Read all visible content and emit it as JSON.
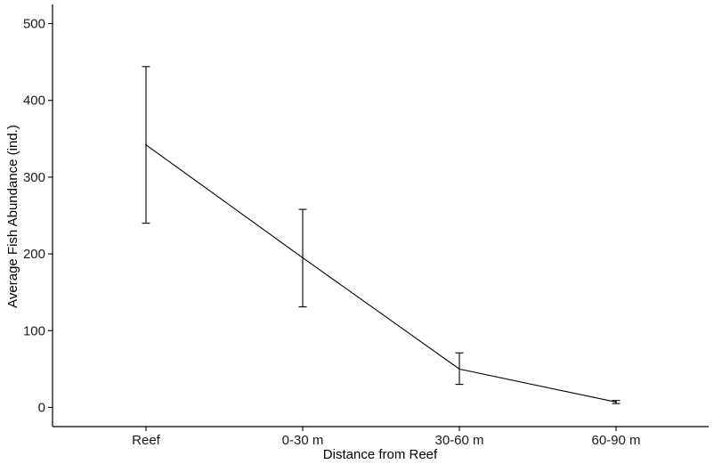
{
  "chart_data": {
    "type": "line",
    "title": "",
    "xlabel": "Distance from Reef",
    "ylabel": "Average Fish Abundance (ind.)",
    "categories": [
      "Reef",
      "0-30 m",
      "30-60 m",
      "60-90 m"
    ],
    "values": [
      342,
      195,
      50,
      7
    ],
    "error_low": [
      240,
      131,
      30,
      5
    ],
    "error_high": [
      444,
      258,
      71,
      9
    ],
    "ylim": [
      -25,
      525
    ],
    "yticks": [
      0,
      100,
      200,
      300,
      400,
      500
    ],
    "grid": false,
    "legend": "none",
    "colors": {
      "line": "#000000",
      "axis": "#000000"
    }
  }
}
